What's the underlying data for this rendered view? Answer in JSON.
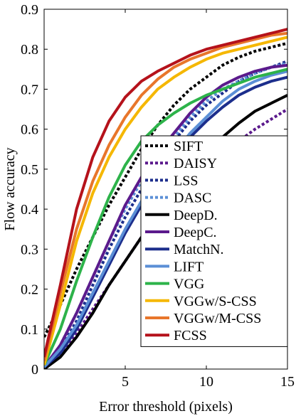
{
  "chart_data": {
    "type": "line",
    "xlabel": "Error threshold (pixels)",
    "ylabel": "Flow accuracy",
    "xlim": [
      0,
      15
    ],
    "ylim": [
      0,
      0.9
    ],
    "xticks": [
      5,
      10,
      15
    ],
    "yticks": [
      0,
      0.1,
      0.2,
      0.3,
      0.4,
      0.5,
      0.6,
      0.7,
      0.8,
      0.9
    ],
    "grid": false,
    "legend_position": "bottom-right",
    "series": [
      {
        "name": "SIFT",
        "color": "#000000",
        "dash": "dotted",
        "x": [
          0,
          1,
          2,
          3,
          4,
          5,
          6,
          7,
          8,
          9,
          10,
          11,
          12,
          13,
          14,
          15
        ],
        "y": [
          0.08,
          0.16,
          0.25,
          0.33,
          0.41,
          0.48,
          0.55,
          0.61,
          0.66,
          0.7,
          0.73,
          0.76,
          0.78,
          0.795,
          0.805,
          0.815
        ]
      },
      {
        "name": "DAISY",
        "color": "#5b1a8c",
        "dash": "dotted",
        "x": [
          0,
          1,
          2,
          3,
          4,
          5,
          6,
          7,
          8,
          9,
          10,
          11,
          12,
          13,
          14,
          15
        ],
        "y": [
          0.005,
          0.04,
          0.09,
          0.15,
          0.21,
          0.27,
          0.33,
          0.38,
          0.43,
          0.47,
          0.51,
          0.54,
          0.57,
          0.6,
          0.625,
          0.65
        ]
      },
      {
        "name": "LSS",
        "color": "#1c2e8c",
        "dash": "dotted",
        "x": [
          0,
          1,
          2,
          3,
          4,
          5,
          6,
          7,
          8,
          9,
          10,
          11,
          12,
          13,
          14,
          15
        ],
        "y": [
          0.005,
          0.05,
          0.12,
          0.21,
          0.3,
          0.38,
          0.45,
          0.52,
          0.57,
          0.62,
          0.66,
          0.69,
          0.72,
          0.74,
          0.755,
          0.77
        ]
      },
      {
        "name": "DASC",
        "color": "#5b8fd6",
        "dash": "dotted",
        "x": [
          0,
          1,
          2,
          3,
          4,
          5,
          6,
          7,
          8,
          9,
          10,
          11,
          12,
          13,
          14,
          15
        ],
        "y": [
          0.005,
          0.06,
          0.14,
          0.23,
          0.32,
          0.4,
          0.47,
          0.53,
          0.58,
          0.63,
          0.67,
          0.7,
          0.72,
          0.74,
          0.755,
          0.765
        ]
      },
      {
        "name": "DeepD.",
        "color": "#000000",
        "dash": "solid",
        "x": [
          0,
          1,
          2,
          3,
          4,
          5,
          6,
          7,
          8,
          9,
          10,
          11,
          12,
          13,
          14,
          15
        ],
        "y": [
          0.0,
          0.03,
          0.08,
          0.14,
          0.21,
          0.27,
          0.33,
          0.39,
          0.44,
          0.49,
          0.54,
          0.58,
          0.615,
          0.645,
          0.665,
          0.685
        ]
      },
      {
        "name": "DeepC.",
        "color": "#5b1a8c",
        "dash": "solid",
        "x": [
          0,
          1,
          2,
          3,
          4,
          5,
          6,
          7,
          8,
          9,
          10,
          11,
          12,
          13,
          14,
          15
        ],
        "y": [
          0.005,
          0.06,
          0.14,
          0.23,
          0.32,
          0.41,
          0.48,
          0.54,
          0.59,
          0.64,
          0.68,
          0.71,
          0.73,
          0.745,
          0.755,
          0.76
        ]
      },
      {
        "name": "MatchN.",
        "color": "#1c2e8c",
        "dash": "solid",
        "x": [
          0,
          1,
          2,
          3,
          4,
          5,
          6,
          7,
          8,
          9,
          10,
          11,
          12,
          13,
          14,
          15
        ],
        "y": [
          0.005,
          0.04,
          0.1,
          0.18,
          0.26,
          0.34,
          0.41,
          0.47,
          0.53,
          0.58,
          0.62,
          0.655,
          0.685,
          0.705,
          0.72,
          0.73
        ]
      },
      {
        "name": "LIFT",
        "color": "#5b8fd6",
        "dash": "solid",
        "x": [
          0,
          1,
          2,
          3,
          4,
          5,
          6,
          7,
          8,
          9,
          10,
          11,
          12,
          13,
          14,
          15
        ],
        "y": [
          0.005,
          0.05,
          0.11,
          0.19,
          0.27,
          0.35,
          0.42,
          0.48,
          0.54,
          0.59,
          0.63,
          0.67,
          0.7,
          0.72,
          0.735,
          0.745
        ]
      },
      {
        "name": "VGG",
        "color": "#2db34a",
        "dash": "solid",
        "x": [
          0,
          1,
          2,
          3,
          4,
          5,
          6,
          7,
          8,
          9,
          10,
          11,
          12,
          13,
          14,
          15
        ],
        "y": [
          0.01,
          0.1,
          0.22,
          0.33,
          0.43,
          0.51,
          0.57,
          0.61,
          0.64,
          0.665,
          0.685,
          0.7,
          0.715,
          0.73,
          0.74,
          0.75
        ]
      },
      {
        "name": "VGGw/S-CSS",
        "color": "#f5b700",
        "dash": "solid",
        "x": [
          0,
          1,
          2,
          3,
          4,
          5,
          6,
          7,
          8,
          9,
          10,
          11,
          12,
          13,
          14,
          15
        ],
        "y": [
          0.01,
          0.16,
          0.32,
          0.44,
          0.53,
          0.6,
          0.655,
          0.7,
          0.73,
          0.755,
          0.775,
          0.79,
          0.8,
          0.81,
          0.82,
          0.83
        ]
      },
      {
        "name": "VGGw/M-CSS",
        "color": "#e8762b",
        "dash": "solid",
        "x": [
          0,
          1,
          2,
          3,
          4,
          5,
          6,
          7,
          8,
          9,
          10,
          11,
          12,
          13,
          14,
          15
        ],
        "y": [
          0.02,
          0.19,
          0.35,
          0.47,
          0.56,
          0.63,
          0.685,
          0.725,
          0.755,
          0.775,
          0.79,
          0.805,
          0.815,
          0.825,
          0.835,
          0.84
        ]
      },
      {
        "name": "FCSS",
        "color": "#b5121b",
        "dash": "solid",
        "x": [
          0,
          1,
          2,
          3,
          4,
          5,
          6,
          7,
          8,
          9,
          10,
          11,
          12,
          13,
          14,
          15
        ],
        "y": [
          0.03,
          0.21,
          0.4,
          0.53,
          0.62,
          0.68,
          0.72,
          0.745,
          0.765,
          0.785,
          0.8,
          0.81,
          0.82,
          0.83,
          0.84,
          0.85
        ]
      }
    ]
  }
}
